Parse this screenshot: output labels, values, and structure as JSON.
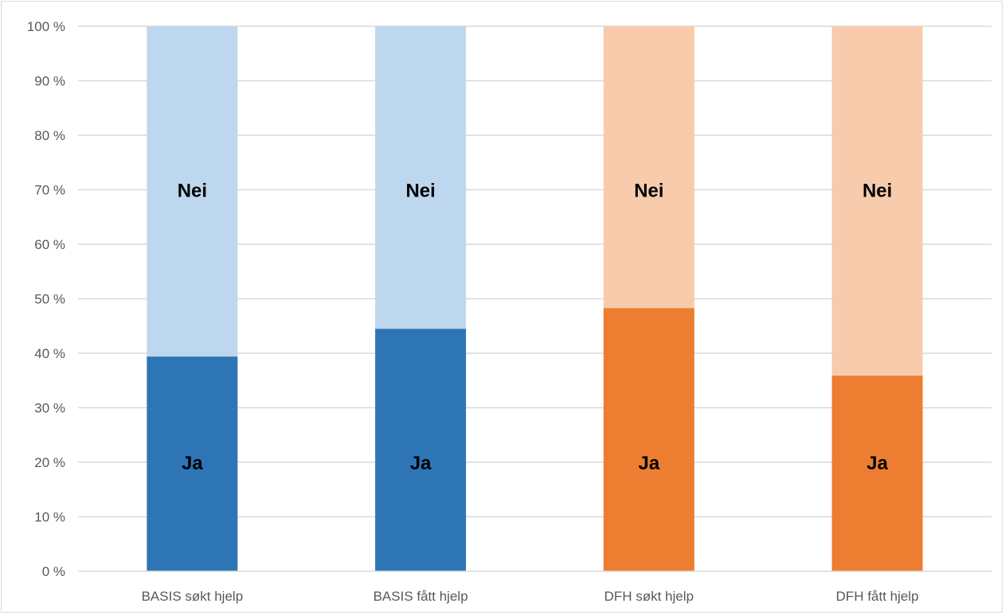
{
  "chart_data": {
    "type": "bar",
    "stacked": true,
    "title": "",
    "xlabel": "",
    "ylabel": "",
    "ylim": [
      0,
      100
    ],
    "y_ticks": [
      "0 %",
      "10 %",
      "20 %",
      "30 %",
      "40 %",
      "50 %",
      "60 %",
      "70 %",
      "80 %",
      "90 %",
      "100 %"
    ],
    "grid": true,
    "legend": "none",
    "categories": [
      "BASIS søkt hjelp",
      "BASIS fått hjelp",
      "DFH søkt hjelp",
      "DFH fått hjelp"
    ],
    "series": [
      {
        "name": "Ja",
        "values": [
          39.4,
          44.5,
          48.3,
          35.9
        ],
        "colors": [
          "#2e75b6",
          "#2e75b6",
          "#ed7d31",
          "#ed7d31"
        ]
      },
      {
        "name": "Nei",
        "values": [
          60.6,
          55.5,
          51.7,
          64.1
        ],
        "colors": [
          "#bdd7ee",
          "#bdd7ee",
          "#f8cbad",
          "#f8cbad"
        ]
      }
    ]
  }
}
